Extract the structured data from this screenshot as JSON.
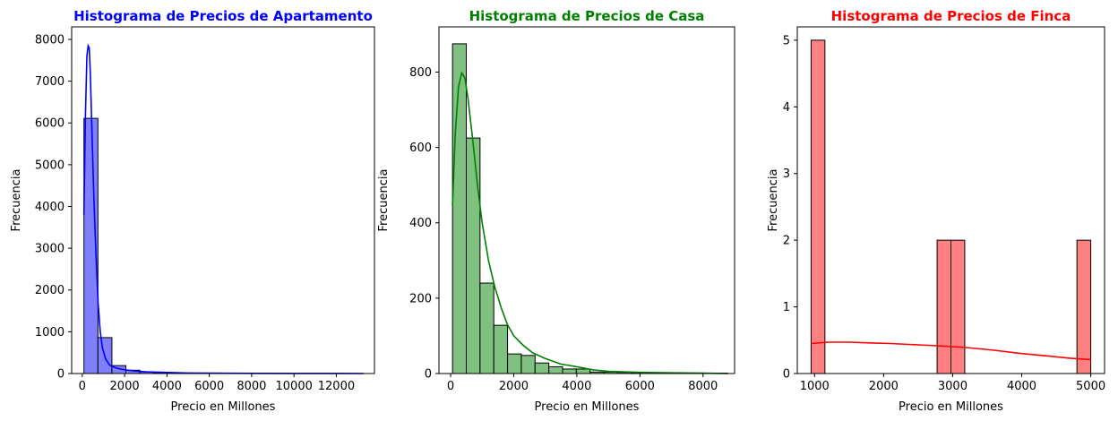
{
  "chart_data": [
    {
      "type": "bar",
      "title": "Histograma de Precios de Apartamento",
      "title_color": "#0000ff",
      "xlabel": "Precio en Millones",
      "ylabel": "Frecuencia",
      "color": "#0000ff",
      "fill": "#8080ff",
      "grid": false,
      "xlim": [
        -500,
        13800
      ],
      "ylim": [
        0,
        8300
      ],
      "xticks": [
        0,
        2000,
        4000,
        6000,
        8000,
        10000,
        12000
      ],
      "yticks": [
        0,
        1000,
        2000,
        3000,
        4000,
        5000,
        6000,
        7000,
        8000
      ],
      "bins": [
        {
          "x0": 80,
          "x1": 740,
          "count": 6110
        },
        {
          "x0": 740,
          "x1": 1400,
          "count": 860
        },
        {
          "x0": 1400,
          "x1": 2060,
          "count": 190
        },
        {
          "x0": 2060,
          "x1": 2720,
          "count": 80
        },
        {
          "x0": 2720,
          "x1": 3380,
          "count": 40
        },
        {
          "x0": 3380,
          "x1": 4040,
          "count": 25
        },
        {
          "x0": 4040,
          "x1": 4700,
          "count": 15
        },
        {
          "x0": 4700,
          "x1": 5360,
          "count": 10
        },
        {
          "x0": 5360,
          "x1": 6020,
          "count": 8
        },
        {
          "x0": 6020,
          "x1": 6680,
          "count": 5
        },
        {
          "x0": 6680,
          "x1": 7340,
          "count": 4
        },
        {
          "x0": 7340,
          "x1": 8000,
          "count": 3
        },
        {
          "x0": 8000,
          "x1": 8660,
          "count": 2
        },
        {
          "x0": 8660,
          "x1": 9320,
          "count": 2
        },
        {
          "x0": 9320,
          "x1": 9980,
          "count": 1
        },
        {
          "x0": 9980,
          "x1": 10640,
          "count": 1
        },
        {
          "x0": 10640,
          "x1": 11300,
          "count": 1
        },
        {
          "x0": 11300,
          "x1": 11960,
          "count": 1
        },
        {
          "x0": 11960,
          "x1": 12620,
          "count": 1
        },
        {
          "x0": 12620,
          "x1": 13280,
          "count": 1
        }
      ],
      "kde": {
        "x": [
          80,
          150,
          220,
          280,
          330,
          380,
          450,
          550,
          650,
          750,
          850,
          950,
          1100,
          1300,
          1600,
          2000,
          2500,
          3000,
          4000,
          5000,
          6000,
          8000,
          10000,
          13280
        ],
        "y": [
          3800,
          6200,
          7600,
          7850,
          7800,
          7200,
          5900,
          4200,
          2800,
          1700,
          1000,
          620,
          350,
          200,
          130,
          90,
          60,
          40,
          25,
          12,
          8,
          4,
          2,
          0
        ]
      }
    },
    {
      "type": "bar",
      "title": "Histograma de Precios de Casa",
      "title_color": "#008000",
      "xlabel": "Precio en Millones",
      "ylabel": "Frecuencia",
      "color": "#008000",
      "fill": "#80c080",
      "grid": false,
      "xlim": [
        -370,
        9000
      ],
      "ylim": [
        0,
        920
      ],
      "xticks": [
        0,
        2000,
        4000,
        6000,
        8000
      ],
      "yticks": [
        0,
        200,
        400,
        600,
        800
      ],
      "bins": [
        {
          "x0": 60,
          "x1": 496,
          "count": 875
        },
        {
          "x0": 496,
          "x1": 932,
          "count": 625
        },
        {
          "x0": 932,
          "x1": 1368,
          "count": 240
        },
        {
          "x0": 1368,
          "x1": 1804,
          "count": 128
        },
        {
          "x0": 1804,
          "x1": 2240,
          "count": 52
        },
        {
          "x0": 2240,
          "x1": 2676,
          "count": 48
        },
        {
          "x0": 2676,
          "x1": 3112,
          "count": 28
        },
        {
          "x0": 3112,
          "x1": 3548,
          "count": 18
        },
        {
          "x0": 3548,
          "x1": 3984,
          "count": 12
        },
        {
          "x0": 3984,
          "x1": 4420,
          "count": 12
        },
        {
          "x0": 4420,
          "x1": 4856,
          "count": 4
        },
        {
          "x0": 4856,
          "x1": 5292,
          "count": 4
        },
        {
          "x0": 5292,
          "x1": 5728,
          "count": 3
        },
        {
          "x0": 5728,
          "x1": 6164,
          "count": 2
        },
        {
          "x0": 6164,
          "x1": 6600,
          "count": 2
        },
        {
          "x0": 6600,
          "x1": 7036,
          "count": 2
        },
        {
          "x0": 7036,
          "x1": 7472,
          "count": 1
        },
        {
          "x0": 7472,
          "x1": 7908,
          "count": 1
        },
        {
          "x0": 7908,
          "x1": 8344,
          "count": 1
        },
        {
          "x0": 8344,
          "x1": 8780,
          "count": 1
        }
      ],
      "kde": {
        "x": [
          60,
          150,
          250,
          350,
          450,
          550,
          700,
          850,
          1000,
          1200,
          1400,
          1600,
          1800,
          2000,
          2300,
          2600,
          3000,
          3500,
          4000,
          4500,
          5000,
          6000,
          7000,
          8000,
          8780
        ],
        "y": [
          445,
          640,
          760,
          798,
          785,
          730,
          620,
          500,
          400,
          300,
          230,
          175,
          130,
          100,
          75,
          55,
          40,
          25,
          18,
          10,
          6,
          3,
          2,
          1,
          0
        ]
      }
    },
    {
      "type": "bar",
      "title": "Histograma de Precios de Finca",
      "title_color": "#ff0000",
      "xlabel": "Precio en Millones",
      "ylabel": "Frecuencia",
      "color": "#ff0000",
      "fill": "#ff8080",
      "grid": false,
      "xlim": [
        750,
        5200
      ],
      "ylim": [
        0,
        5.2
      ],
      "xticks": [
        1000,
        2000,
        3000,
        4000,
        5000
      ],
      "yticks": [
        0,
        1,
        2,
        3,
        4,
        5
      ],
      "bins": [
        {
          "x0": 950,
          "x1": 1150,
          "count": 5
        },
        {
          "x0": 2775,
          "x1": 2975,
          "count": 2
        },
        {
          "x0": 2975,
          "x1": 3175,
          "count": 2
        },
        {
          "x0": 4800,
          "x1": 5000,
          "count": 2
        }
      ],
      "kde": {
        "x": [
          950,
          1200,
          1500,
          1800,
          2100,
          2500,
          2900,
          3200,
          3600,
          4000,
          4400,
          4700,
          5000
        ],
        "y": [
          0.45,
          0.47,
          0.47,
          0.46,
          0.45,
          0.43,
          0.41,
          0.39,
          0.35,
          0.3,
          0.26,
          0.23,
          0.21
        ]
      }
    }
  ]
}
